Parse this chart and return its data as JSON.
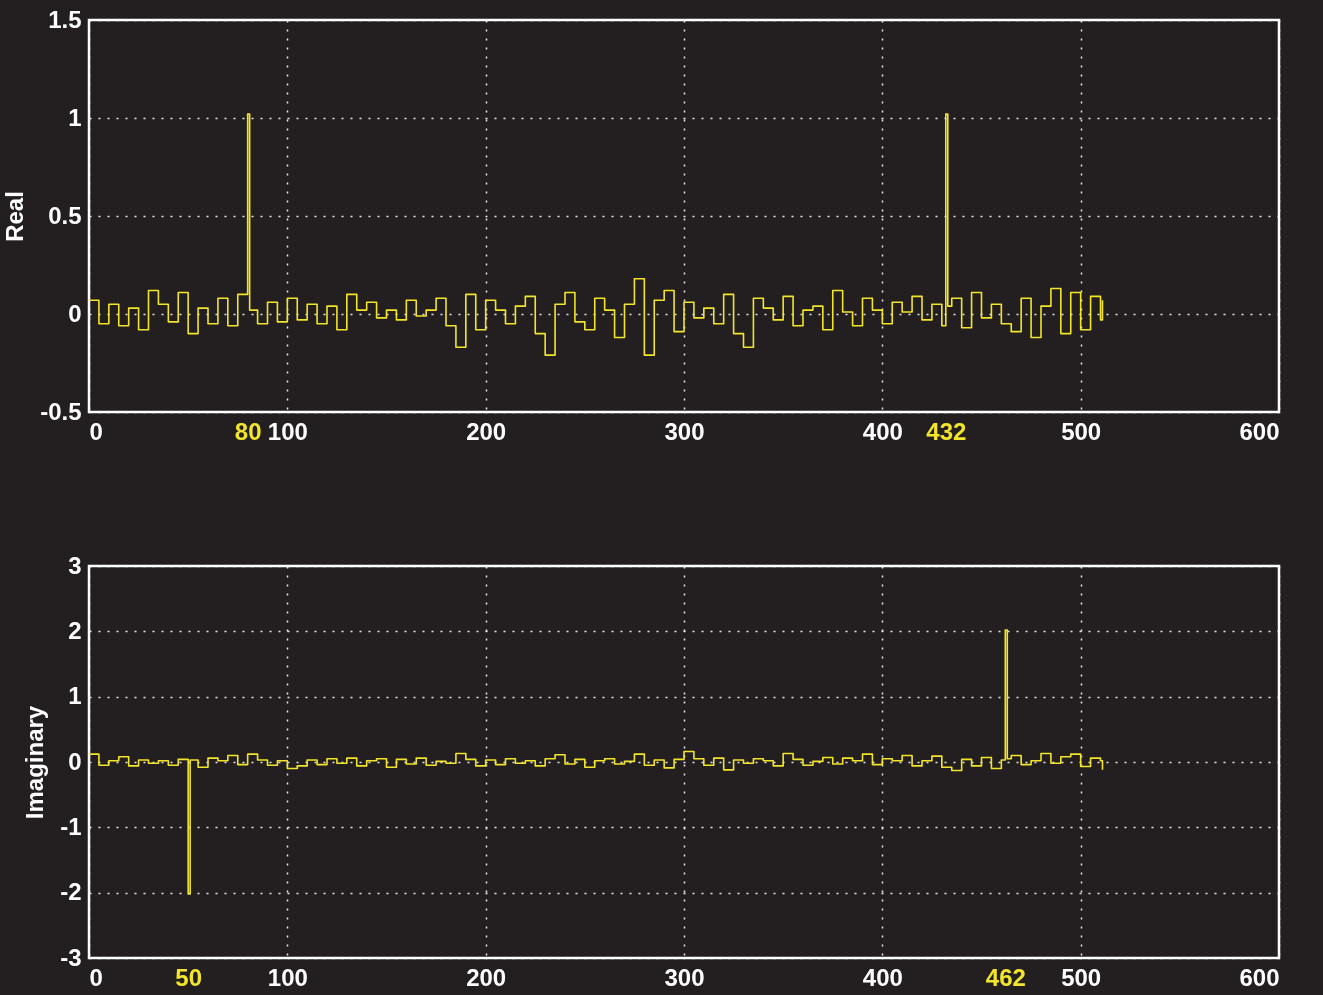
{
  "chart_data": [
    {
      "type": "step",
      "ylabel": "Real",
      "grid": true,
      "xlim": [
        0,
        600
      ],
      "ylim": [
        -0.5,
        1.5
      ],
      "xticks": [
        0,
        {
          "value": 80,
          "label": "80"
        },
        100,
        200,
        300,
        400,
        {
          "value": 432,
          "label": "432"
        },
        500,
        600
      ],
      "yticks": [
        -0.5,
        0,
        0.5,
        1,
        1.5
      ],
      "x": [
        0,
        5,
        10,
        15,
        20,
        25,
        30,
        35,
        40,
        45,
        50,
        55,
        60,
        65,
        70,
        75,
        80,
        81,
        85,
        90,
        95,
        100,
        105,
        110,
        115,
        120,
        125,
        130,
        135,
        140,
        145,
        150,
        155,
        160,
        165,
        170,
        175,
        180,
        185,
        190,
        195,
        200,
        205,
        210,
        215,
        220,
        225,
        230,
        235,
        240,
        245,
        250,
        255,
        260,
        265,
        270,
        275,
        280,
        285,
        290,
        295,
        300,
        305,
        310,
        315,
        320,
        325,
        330,
        335,
        340,
        345,
        350,
        355,
        360,
        365,
        370,
        375,
        380,
        385,
        390,
        395,
        400,
        405,
        410,
        415,
        420,
        425,
        430,
        432,
        433,
        435,
        440,
        445,
        450,
        455,
        460,
        465,
        470,
        475,
        480,
        485,
        490,
        495,
        500,
        505,
        510,
        511
      ],
      "series": [
        {
          "color": "#f2e52b",
          "values": [
            0.07,
            -0.05,
            0.05,
            -0.06,
            0.03,
            -0.08,
            0.12,
            0.05,
            -0.04,
            0.11,
            -0.1,
            0.03,
            -0.05,
            0.08,
            -0.06,
            0.1,
            1.02,
            0.02,
            -0.05,
            0.06,
            -0.04,
            0.08,
            -0.03,
            0.05,
            -0.05,
            0.04,
            -0.08,
            0.1,
            0.02,
            0.06,
            -0.02,
            0.02,
            -0.03,
            0.07,
            -0.01,
            0.02,
            0.08,
            -0.06,
            -0.17,
            0.1,
            -0.08,
            0.07,
            0.02,
            -0.05,
            0.04,
            0.09,
            -0.1,
            -0.21,
            0.05,
            0.11,
            -0.04,
            -0.08,
            0.08,
            0.02,
            -0.12,
            0.05,
            0.18,
            -0.21,
            0.07,
            0.12,
            -0.09,
            0.06,
            -0.02,
            0.03,
            -0.05,
            0.1,
            -0.1,
            -0.17,
            0.08,
            0.03,
            -0.03,
            0.09,
            -0.06,
            0.02,
            0.04,
            -0.08,
            0.12,
            0.01,
            -0.06,
            0.08,
            0.02,
            -0.05,
            0.06,
            0.01,
            0.09,
            -0.03,
            0.05,
            -0.06,
            1.02,
            0.04,
            0.08,
            -0.07,
            0.11,
            -0.02,
            0.05,
            -0.05,
            -0.09,
            0.08,
            -0.12,
            0.04,
            0.13,
            -0.1,
            0.11,
            -0.08,
            0.09,
            -0.03,
            0.07
          ]
        }
      ]
    },
    {
      "type": "step",
      "ylabel": "Imaginary",
      "grid": true,
      "xlim": [
        0,
        600
      ],
      "ylim": [
        -3,
        3
      ],
      "xticks": [
        0,
        {
          "value": 50,
          "label": "50"
        },
        100,
        200,
        300,
        400,
        {
          "value": 462,
          "label": "462"
        },
        500,
        600
      ],
      "yticks": [
        -3,
        -2,
        -1,
        0,
        1,
        2,
        3
      ],
      "x": [
        0,
        5,
        10,
        15,
        20,
        25,
        30,
        35,
        40,
        45,
        50,
        51,
        55,
        60,
        65,
        70,
        75,
        80,
        85,
        90,
        95,
        100,
        105,
        110,
        115,
        120,
        125,
        130,
        135,
        140,
        145,
        150,
        155,
        160,
        165,
        170,
        175,
        180,
        185,
        190,
        195,
        200,
        205,
        210,
        215,
        220,
        225,
        230,
        235,
        240,
        245,
        250,
        255,
        260,
        265,
        270,
        275,
        280,
        285,
        290,
        295,
        300,
        305,
        310,
        315,
        320,
        325,
        330,
        335,
        340,
        345,
        350,
        355,
        360,
        365,
        370,
        375,
        380,
        385,
        390,
        395,
        400,
        405,
        410,
        415,
        420,
        425,
        430,
        435,
        440,
        445,
        450,
        455,
        460,
        462,
        463,
        465,
        470,
        475,
        480,
        485,
        490,
        495,
        500,
        505,
        510,
        511
      ],
      "series": [
        {
          "color": "#f2e52b",
          "values": [
            0.12,
            -0.05,
            0.02,
            0.08,
            -0.06,
            0.03,
            -0.02,
            0.02,
            -0.05,
            0.04,
            -2.02,
            0.03,
            -0.08,
            0.06,
            0.02,
            0.1,
            -0.04,
            0.12,
            0.03,
            -0.05,
            0.02,
            -0.1,
            -0.06,
            0.03,
            -0.04,
            0.05,
            -0.02,
            0.06,
            -0.06,
            0.02,
            0.05,
            -0.08,
            0.04,
            -0.03,
            0.06,
            -0.05,
            0.01,
            -0.02,
            0.13,
            0.04,
            -0.06,
            0.03,
            -0.04,
            0.05,
            -0.02,
            0.02,
            -0.06,
            0.05,
            0.11,
            -0.03,
            0.04,
            -0.08,
            0.02,
            0.05,
            -0.03,
            0.01,
            0.12,
            -0.05,
            0.03,
            -0.09,
            0.04,
            0.16,
            0.05,
            -0.05,
            0.06,
            -0.12,
            0.03,
            -0.02,
            0.05,
            0.02,
            -0.06,
            0.13,
            0.04,
            -0.05,
            0.01,
            0.07,
            -0.03,
            0.06,
            0.02,
            0.12,
            -0.04,
            0.05,
            0.02,
            0.1,
            -0.06,
            0.02,
            0.09,
            -0.08,
            -0.13,
            0.04,
            -0.06,
            0.07,
            -0.1,
            0.03,
            2.02,
            0.05,
            0.1,
            -0.04,
            0.02,
            0.13,
            -0.02,
            0.08,
            0.12,
            -0.07,
            0.06,
            0.02,
            -0.12
          ]
        }
      ]
    }
  ]
}
